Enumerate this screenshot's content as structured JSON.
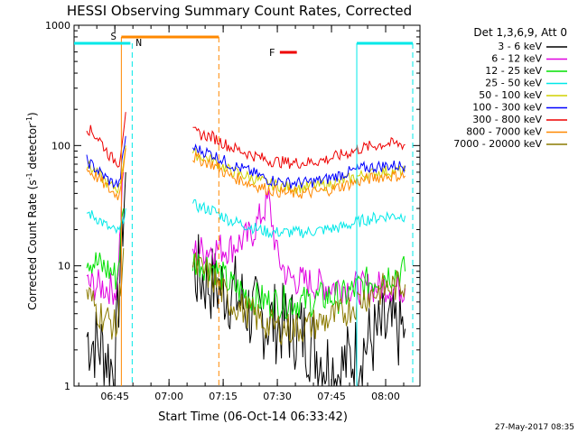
{
  "chart_data": {
    "type": "line",
    "title": "HESSI Observing Summary Count Rates, Corrected",
    "xlabel": "Start Time (06-Oct-14 06:33:42)",
    "ylabel_main": "Corrected Count Rate (s",
    "ylabel_exp1": "-1",
    "ylabel_mid": " detector",
    "ylabel_exp2": "-1",
    "ylabel_end": ")",
    "yscale": "log",
    "ylim": [
      1,
      1000
    ],
    "xlim": [
      "06:33:42",
      "08:09:30"
    ],
    "x_ticks": [
      "06:45",
      "07:00",
      "07:15",
      "07:30",
      "07:45",
      "08:00"
    ],
    "y_ticks": [
      "1",
      "10",
      "100",
      "1000"
    ],
    "legend_header": "Det 1,3,6,9, Att 0",
    "series": [
      {
        "name": "3 - 6 keV",
        "color": "#000000",
        "values": [
          [
            6.62,
            2.6
          ],
          [
            6.7,
            2.0
          ],
          [
            6.75,
            1.3
          ],
          [
            6.78,
            15
          ],
          [
            6.8,
            60
          ],
          [
            7.11,
            9
          ],
          [
            7.2,
            7
          ],
          [
            7.3,
            6
          ],
          [
            7.38,
            4
          ],
          [
            7.45,
            3.5
          ],
          [
            7.55,
            3.2
          ],
          [
            7.63,
            2.6
          ],
          [
            7.72,
            1.6
          ],
          [
            7.78,
            1.3
          ],
          [
            7.88,
            2.0
          ],
          [
            7.98,
            2.8
          ],
          [
            8.09,
            3.0
          ]
        ]
      },
      {
        "name": "6 - 12 keV",
        "color": "#e000e0",
        "values": [
          [
            6.62,
            7.0
          ],
          [
            6.68,
            6.8
          ],
          [
            6.73,
            6.5
          ],
          [
            6.76,
            6.3
          ],
          [
            6.79,
            60
          ],
          [
            7.11,
            13
          ],
          [
            7.2,
            14
          ],
          [
            7.28,
            14
          ],
          [
            7.38,
            18
          ],
          [
            7.46,
            35
          ],
          [
            7.5,
            12
          ],
          [
            7.55,
            8
          ],
          [
            7.6,
            7.5
          ],
          [
            7.68,
            7
          ],
          [
            7.78,
            6.8
          ],
          [
            7.9,
            6.5
          ],
          [
            8.0,
            6.8
          ],
          [
            8.09,
            6.5
          ]
        ]
      },
      {
        "name": "12 - 25 keV",
        "color": "#00e000",
        "values": [
          [
            6.62,
            12
          ],
          [
            6.68,
            10
          ],
          [
            6.73,
            9
          ],
          [
            6.76,
            8
          ],
          [
            6.79,
            30
          ],
          [
            7.11,
            11
          ],
          [
            7.2,
            10
          ],
          [
            7.28,
            7
          ],
          [
            7.38,
            5.5
          ],
          [
            7.46,
            5
          ],
          [
            7.55,
            5
          ],
          [
            7.63,
            5
          ],
          [
            7.72,
            5.5
          ],
          [
            7.8,
            5.5
          ],
          [
            7.9,
            7
          ],
          [
            8.0,
            8.5
          ],
          [
            8.09,
            9
          ]
        ]
      },
      {
        "name": "25 - 50 keV",
        "color": "#00e8e8",
        "values": [
          [
            6.62,
            28
          ],
          [
            6.68,
            24
          ],
          [
            6.73,
            20
          ],
          [
            6.77,
            19
          ],
          [
            6.8,
            30
          ],
          [
            7.11,
            32
          ],
          [
            7.2,
            29
          ],
          [
            7.28,
            24
          ],
          [
            7.38,
            21
          ],
          [
            7.46,
            19
          ],
          [
            7.55,
            19
          ],
          [
            7.63,
            19
          ],
          [
            7.72,
            20
          ],
          [
            7.8,
            21
          ],
          [
            7.9,
            24
          ],
          [
            8.0,
            26
          ],
          [
            8.09,
            26
          ]
        ]
      },
      {
        "name": "50 - 100 keV",
        "color": "#d0d000",
        "values": [
          [
            6.62,
            70
          ],
          [
            6.68,
            56
          ],
          [
            6.73,
            46
          ],
          [
            6.77,
            44
          ],
          [
            6.8,
            100
          ],
          [
            7.11,
            86
          ],
          [
            7.2,
            76
          ],
          [
            7.28,
            62
          ],
          [
            7.38,
            54
          ],
          [
            7.46,
            48
          ],
          [
            7.55,
            45
          ],
          [
            7.63,
            45
          ],
          [
            7.72,
            47
          ],
          [
            7.8,
            51
          ],
          [
            7.9,
            57
          ],
          [
            8.0,
            61
          ],
          [
            8.09,
            61
          ]
        ]
      },
      {
        "name": "100 - 300 keV",
        "color": "#0000ff",
        "values": [
          [
            6.62,
            75
          ],
          [
            6.68,
            60
          ],
          [
            6.73,
            50
          ],
          [
            6.77,
            47
          ],
          [
            6.8,
            120
          ],
          [
            7.11,
            95
          ],
          [
            7.2,
            85
          ],
          [
            7.28,
            70
          ],
          [
            7.38,
            60
          ],
          [
            7.46,
            52
          ],
          [
            7.55,
            49
          ],
          [
            7.63,
            49
          ],
          [
            7.72,
            52
          ],
          [
            7.8,
            58
          ],
          [
            7.9,
            65
          ],
          [
            8.0,
            68
          ],
          [
            8.09,
            68
          ]
        ]
      },
      {
        "name": "300 - 800 keV",
        "color": "#ee0000",
        "values": [
          [
            6.62,
            142
          ],
          [
            6.68,
            112
          ],
          [
            6.73,
            80
          ],
          [
            6.77,
            72
          ],
          [
            6.8,
            190
          ],
          [
            7.11,
            128
          ],
          [
            7.2,
            118
          ],
          [
            7.28,
            98
          ],
          [
            7.38,
            84
          ],
          [
            7.46,
            75
          ],
          [
            7.55,
            72
          ],
          [
            7.63,
            72
          ],
          [
            7.72,
            76
          ],
          [
            7.8,
            84
          ],
          [
            7.9,
            96
          ],
          [
            8.0,
            104
          ],
          [
            8.09,
            102
          ]
        ]
      },
      {
        "name": "800 - 7000 keV",
        "color": "#ff8800",
        "values": [
          [
            6.62,
            64
          ],
          [
            6.68,
            52
          ],
          [
            6.73,
            42
          ],
          [
            6.77,
            38
          ],
          [
            6.8,
            95
          ],
          [
            7.11,
            80
          ],
          [
            7.2,
            70
          ],
          [
            7.28,
            56
          ],
          [
            7.38,
            48
          ],
          [
            7.46,
            43
          ],
          [
            7.55,
            40
          ],
          [
            7.63,
            40
          ],
          [
            7.72,
            42
          ],
          [
            7.8,
            46
          ],
          [
            7.9,
            52
          ],
          [
            8.0,
            56
          ],
          [
            8.09,
            56
          ]
        ]
      },
      {
        "name": "7000 - 20000 keV",
        "color": "#8b7a00",
        "values": [
          [
            6.62,
            6.0
          ],
          [
            6.68,
            4.0
          ],
          [
            6.73,
            3.4
          ],
          [
            6.76,
            3.0
          ],
          [
            6.79,
            14
          ],
          [
            7.11,
            10
          ],
          [
            7.2,
            8
          ],
          [
            7.28,
            5
          ],
          [
            7.38,
            4.0
          ],
          [
            7.46,
            3.2
          ],
          [
            7.55,
            3.0
          ],
          [
            7.63,
            3.1
          ],
          [
            7.72,
            3.5
          ],
          [
            7.8,
            4.0
          ],
          [
            7.9,
            5.5
          ],
          [
            8.0,
            6.5
          ],
          [
            8.09,
            7.0
          ]
        ]
      }
    ],
    "flags": [
      {
        "label": "S",
        "color": "#ff8800",
        "start": 6.78,
        "end": 7.23
      },
      {
        "label": "N",
        "color": "#00e8e8",
        "start": 6.57,
        "end": 6.83
      },
      {
        "label": "F",
        "color": "#ee0000",
        "start": 7.52,
        "end": 7.54
      }
    ],
    "legend_placement": "right",
    "timestamp": "27-May-2017 08:35"
  }
}
